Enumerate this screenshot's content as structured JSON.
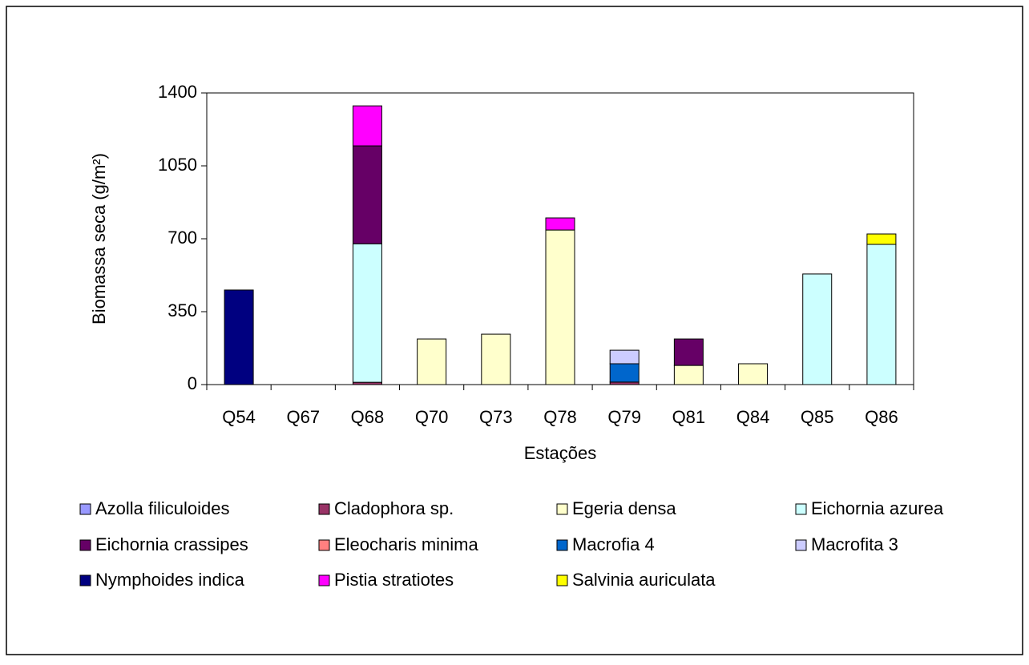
{
  "chart_data": {
    "type": "stacked-bar",
    "x_label": "Estações",
    "y_label": "Biomassa seca (g/m²)",
    "categories": [
      "Q54",
      "Q67",
      "Q68",
      "Q70",
      "Q73",
      "Q78",
      "Q79",
      "Q81",
      "Q84",
      "Q85",
      "Q86"
    ],
    "ylim": [
      0,
      1400
    ],
    "yticks": [
      0,
      350,
      700,
      1050,
      1400
    ],
    "series": [
      {
        "name": "Azolla filiculoides",
        "color": "#9999ff",
        "values": [
          null,
          null,
          null,
          null,
          null,
          null,
          null,
          null,
          null,
          null,
          null
        ]
      },
      {
        "name": "Cladophora sp.",
        "color": "#993366",
        "values": [
          null,
          null,
          11,
          null,
          null,
          null,
          12,
          null,
          null,
          null,
          null
        ]
      },
      {
        "name": "Egeria densa",
        "color": "#ffffcc",
        "values": [
          null,
          null,
          null,
          219,
          242,
          742,
          null,
          92,
          100,
          null,
          null
        ]
      },
      {
        "name": "Eichornia azurea",
        "color": "#ccffff",
        "values": [
          null,
          null,
          665,
          null,
          null,
          null,
          null,
          null,
          null,
          531,
          673
        ]
      },
      {
        "name": "Eichornia crassipes",
        "color": "#660066",
        "values": [
          null,
          null,
          470,
          null,
          null,
          null,
          null,
          127,
          null,
          null,
          null
        ]
      },
      {
        "name": "Eleocharis minima",
        "color": "#ff8080",
        "values": [
          null,
          null,
          null,
          null,
          null,
          null,
          null,
          null,
          null,
          null,
          null
        ]
      },
      {
        "name": "Macrofia 4",
        "color": "#0066cc",
        "values": [
          null,
          null,
          null,
          null,
          null,
          null,
          88,
          null,
          null,
          null,
          null
        ]
      },
      {
        "name": "Macrofita 3",
        "color": "#ccccff",
        "values": [
          null,
          null,
          null,
          null,
          null,
          null,
          65,
          null,
          null,
          null,
          null
        ]
      },
      {
        "name": "Nymphoides indica",
        "color": "#000080",
        "values": [
          454,
          null,
          null,
          null,
          null,
          null,
          null,
          null,
          null,
          null,
          null
        ]
      },
      {
        "name": "Pistia stratiotes",
        "color": "#ff00ff",
        "values": [
          null,
          null,
          192,
          null,
          null,
          58,
          null,
          null,
          null,
          null,
          null
        ]
      },
      {
        "name": "Salvinia auriculata",
        "color": "#ffff00",
        "values": [
          null,
          null,
          null,
          null,
          null,
          null,
          null,
          null,
          null,
          null,
          50
        ]
      }
    ]
  }
}
